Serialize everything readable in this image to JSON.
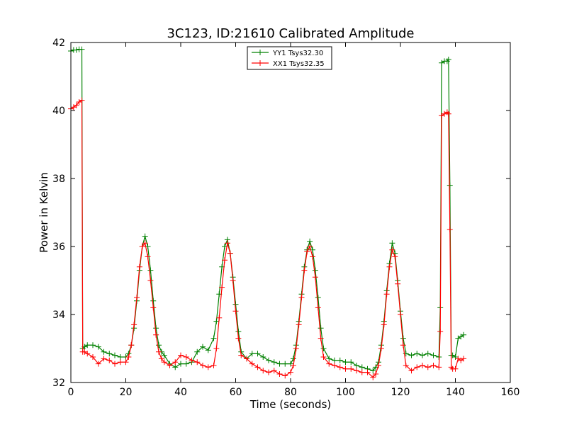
{
  "chart_data": {
    "type": "line",
    "title": "3C123, ID:21610 Calibrated Amplitude",
    "xlabel": "Time (seconds)",
    "ylabel": "Power in Kelvin",
    "xlim": [
      0,
      160
    ],
    "ylim": [
      32,
      42
    ],
    "xticks": [
      0,
      20,
      40,
      60,
      80,
      100,
      120,
      140,
      160
    ],
    "yticks": [
      32,
      34,
      36,
      38,
      40,
      42
    ],
    "grid": false,
    "legend_position": "top-center",
    "marker": "+",
    "series": [
      {
        "name": "YY1 Tsys32.30",
        "color": "#008000",
        "x": [
          0,
          1,
          2,
          3,
          4,
          4.3,
          5,
          6,
          8,
          10,
          12,
          14,
          16,
          18,
          20,
          21,
          22,
          23,
          24,
          25,
          26,
          27,
          28,
          29,
          30,
          31,
          32,
          33,
          34,
          36,
          38,
          40,
          42,
          44,
          46,
          48,
          50,
          52,
          53,
          54,
          55,
          56,
          57,
          58,
          59,
          60,
          61,
          62,
          64,
          66,
          68,
          70,
          72,
          74,
          76,
          78,
          80,
          81,
          82,
          83,
          84,
          85,
          86,
          87,
          88,
          89,
          90,
          91,
          92,
          94,
          96,
          98,
          100,
          102,
          104,
          106,
          108,
          110,
          111,
          112,
          113,
          114,
          115,
          116,
          117,
          118,
          119,
          120,
          121,
          122,
          124,
          126,
          128,
          130,
          132,
          134,
          134.5,
          135,
          136,
          137,
          137.5,
          138,
          138.5,
          139,
          140,
          141,
          142,
          143
        ],
        "values": [
          41.75,
          41.78,
          41.78,
          41.8,
          41.8,
          33.0,
          33.05,
          33.1,
          33.1,
          33.05,
          32.9,
          32.85,
          32.8,
          32.75,
          32.75,
          32.85,
          33.1,
          33.6,
          34.4,
          35.3,
          36.0,
          36.3,
          36.0,
          35.3,
          34.4,
          33.6,
          33.1,
          32.9,
          32.8,
          32.55,
          32.45,
          32.55,
          32.55,
          32.6,
          32.9,
          33.05,
          32.95,
          33.3,
          33.8,
          34.6,
          35.4,
          36.0,
          36.2,
          35.8,
          35.1,
          34.3,
          33.5,
          32.9,
          32.7,
          32.85,
          32.85,
          32.75,
          32.65,
          32.6,
          32.55,
          32.55,
          32.55,
          32.7,
          33.1,
          33.8,
          34.6,
          35.4,
          35.9,
          36.15,
          35.9,
          35.3,
          34.5,
          33.6,
          33.0,
          32.7,
          32.65,
          32.65,
          32.6,
          32.6,
          32.5,
          32.45,
          32.4,
          32.35,
          32.45,
          32.6,
          33.1,
          33.8,
          34.7,
          35.5,
          36.1,
          35.8,
          35.0,
          34.1,
          33.3,
          32.85,
          32.8,
          32.85,
          32.8,
          32.85,
          32.8,
          32.75,
          34.2,
          41.4,
          41.45,
          41.45,
          41.5,
          37.8,
          32.8,
          32.8,
          32.75,
          33.3,
          33.35,
          33.4
        ]
      },
      {
        "name": "XX1 Tsys32.35",
        "color": "#ff0000",
        "x": [
          0,
          1,
          2,
          3,
          4,
          4.3,
          5,
          6,
          8,
          10,
          12,
          14,
          16,
          18,
          20,
          21,
          22,
          23,
          24,
          25,
          26,
          27,
          28,
          29,
          30,
          31,
          32,
          33,
          34,
          36,
          38,
          40,
          42,
          44,
          46,
          48,
          50,
          52,
          53,
          54,
          55,
          56,
          57,
          58,
          59,
          60,
          61,
          62,
          64,
          66,
          68,
          70,
          72,
          74,
          76,
          78,
          80,
          81,
          82,
          83,
          84,
          85,
          86,
          87,
          88,
          89,
          90,
          91,
          92,
          94,
          96,
          98,
          100,
          102,
          104,
          106,
          108,
          110,
          111,
          112,
          113,
          114,
          115,
          116,
          117,
          118,
          119,
          120,
          121,
          122,
          124,
          126,
          128,
          130,
          132,
          134,
          134.5,
          135,
          136,
          137,
          137.5,
          138,
          138.5,
          139,
          140,
          141,
          142,
          143
        ],
        "values": [
          40.05,
          40.1,
          40.15,
          40.25,
          40.3,
          32.9,
          32.9,
          32.85,
          32.75,
          32.55,
          32.7,
          32.65,
          32.55,
          32.6,
          32.6,
          32.75,
          33.1,
          33.7,
          34.5,
          35.4,
          36.0,
          36.1,
          35.7,
          35.0,
          34.2,
          33.4,
          32.9,
          32.7,
          32.6,
          32.5,
          32.6,
          32.8,
          32.75,
          32.65,
          32.6,
          32.5,
          32.45,
          32.5,
          33.0,
          33.9,
          34.8,
          35.6,
          36.1,
          35.8,
          35.0,
          34.1,
          33.3,
          32.8,
          32.7,
          32.55,
          32.45,
          32.35,
          32.3,
          32.35,
          32.25,
          32.2,
          32.3,
          32.5,
          33.0,
          33.7,
          34.5,
          35.3,
          35.85,
          36.0,
          35.7,
          35.1,
          34.2,
          33.3,
          32.75,
          32.55,
          32.5,
          32.45,
          32.4,
          32.4,
          32.35,
          32.3,
          32.3,
          32.15,
          32.25,
          32.5,
          33.0,
          33.7,
          34.6,
          35.4,
          35.9,
          35.7,
          34.9,
          34.0,
          33.1,
          32.5,
          32.35,
          32.45,
          32.5,
          32.45,
          32.5,
          32.45,
          33.5,
          39.85,
          39.9,
          39.95,
          39.9,
          36.5,
          32.45,
          32.4,
          32.4,
          32.7,
          32.65,
          32.7
        ]
      }
    ]
  }
}
